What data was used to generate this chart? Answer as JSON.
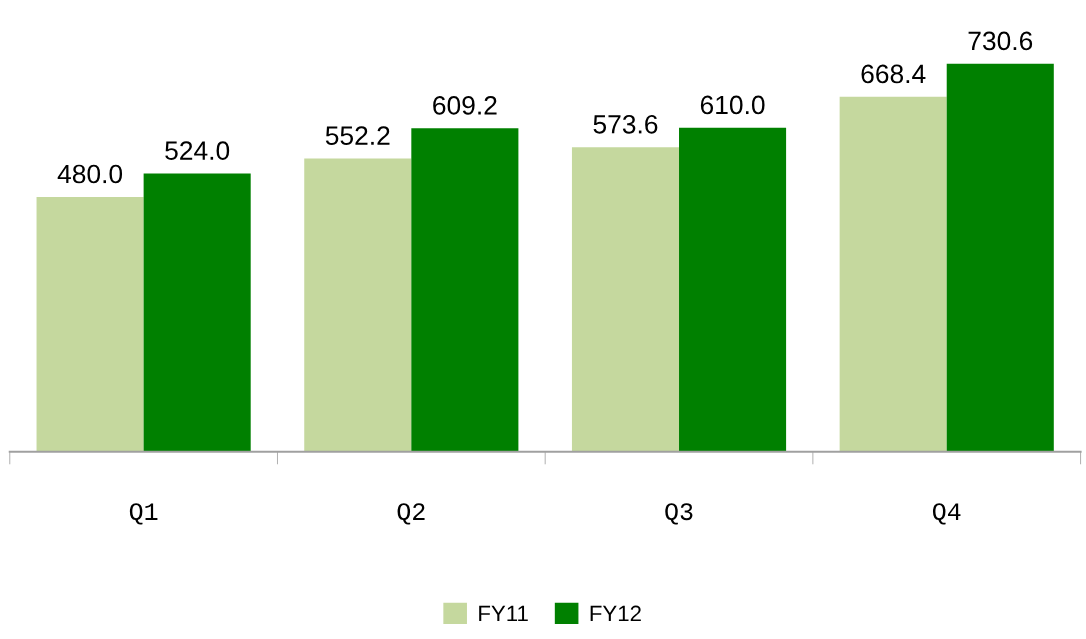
{
  "chart_data": {
    "type": "bar",
    "categories": [
      "Q1",
      "Q2",
      "Q3",
      "Q4"
    ],
    "series": [
      {
        "name": "FY11",
        "color": "#c5d89e",
        "values": [
          480.0,
          552.2,
          573.6,
          668.4
        ],
        "value_labels": [
          "480.0",
          "552.2",
          "573.6",
          "668.4"
        ]
      },
      {
        "name": "FY12",
        "color": "#008000",
        "values": [
          524.0,
          609.2,
          610.0,
          730.6
        ],
        "value_labels": [
          "524.0",
          "609.2",
          "610.0",
          "730.6"
        ]
      }
    ],
    "legend": "bottom",
    "grid": false
  }
}
